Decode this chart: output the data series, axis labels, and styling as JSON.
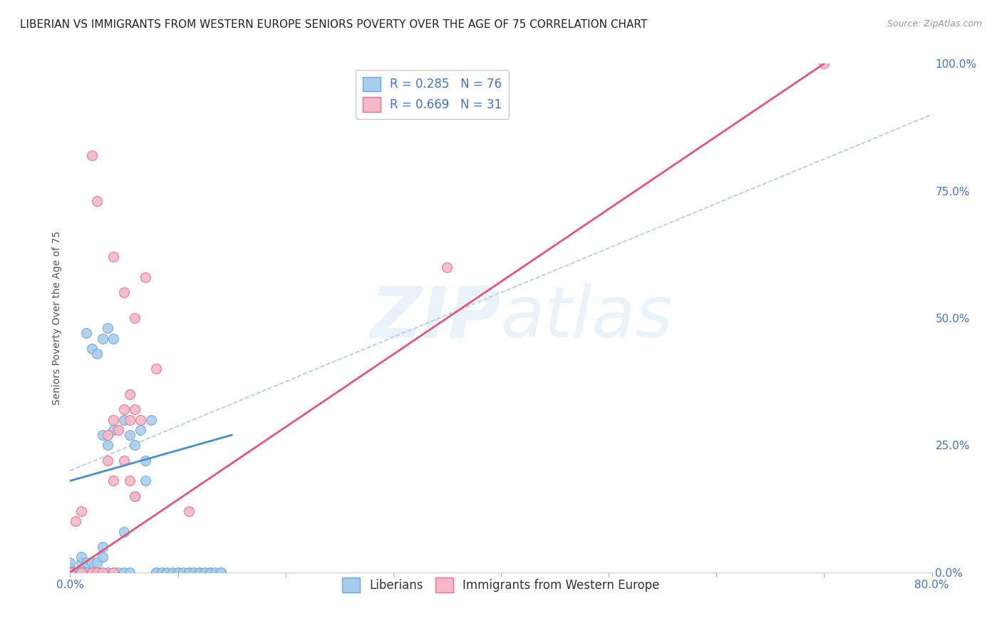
{
  "title": "LIBERIAN VS IMMIGRANTS FROM WESTERN EUROPE SENIORS POVERTY OVER THE AGE OF 75 CORRELATION CHART",
  "source": "Source: ZipAtlas.com",
  "ylabel": "Seniors Poverty Over the Age of 75",
  "xlim": [
    0.0,
    0.8
  ],
  "ylim": [
    0.0,
    1.0
  ],
  "xticks": [
    0.0,
    0.1,
    0.2,
    0.3,
    0.4,
    0.5,
    0.6,
    0.7,
    0.8
  ],
  "ytick_labels_right": [
    "0.0%",
    "25.0%",
    "50.0%",
    "75.0%",
    "100.0%"
  ],
  "yticks_right": [
    0.0,
    0.25,
    0.5,
    0.75,
    1.0
  ],
  "R_blue": 0.285,
  "N_blue": 76,
  "R_pink": 0.669,
  "N_pink": 31,
  "blue_color": "#a8ccee",
  "pink_color": "#f5b8c8",
  "blue_edge_color": "#6aaad4",
  "pink_edge_color": "#e8708a",
  "blue_line_color": "#4a8fc0",
  "pink_line_color": "#e05878",
  "diag_color": "#b0c8e8",
  "background_color": "#ffffff",
  "grid_color": "#e8e8e8",
  "title_fontsize": 11,
  "axis_label_fontsize": 10,
  "tick_fontsize": 11,
  "legend_fontsize": 12,
  "blue_scatter": [
    [
      0.0,
      0.0
    ],
    [
      0.0,
      0.0
    ],
    [
      0.0,
      0.0
    ],
    [
      0.0,
      0.0
    ],
    [
      0.0,
      0.0
    ],
    [
      0.0,
      0.0
    ],
    [
      0.0,
      0.0
    ],
    [
      0.0,
      0.0
    ],
    [
      0.0,
      0.01
    ],
    [
      0.0,
      0.02
    ],
    [
      0.005,
      0.0
    ],
    [
      0.005,
      0.0
    ],
    [
      0.005,
      0.0
    ],
    [
      0.005,
      0.0
    ],
    [
      0.008,
      0.0
    ],
    [
      0.01,
      0.0
    ],
    [
      0.01,
      0.0
    ],
    [
      0.01,
      0.0
    ],
    [
      0.01,
      0.02
    ],
    [
      0.01,
      0.03
    ],
    [
      0.015,
      0.0
    ],
    [
      0.015,
      0.0
    ],
    [
      0.015,
      0.02
    ],
    [
      0.02,
      0.0
    ],
    [
      0.02,
      0.0
    ],
    [
      0.02,
      0.0
    ],
    [
      0.02,
      0.02
    ],
    [
      0.025,
      0.0
    ],
    [
      0.025,
      0.02
    ],
    [
      0.03,
      0.0
    ],
    [
      0.03,
      0.03
    ],
    [
      0.03,
      0.05
    ],
    [
      0.03,
      0.27
    ],
    [
      0.035,
      0.0
    ],
    [
      0.035,
      0.25
    ],
    [
      0.04,
      0.0
    ],
    [
      0.04,
      0.0
    ],
    [
      0.04,
      0.28
    ],
    [
      0.045,
      0.0
    ],
    [
      0.05,
      0.0
    ],
    [
      0.05,
      0.08
    ],
    [
      0.05,
      0.3
    ],
    [
      0.055,
      0.0
    ],
    [
      0.055,
      0.27
    ],
    [
      0.06,
      0.15
    ],
    [
      0.06,
      0.25
    ],
    [
      0.065,
      0.28
    ],
    [
      0.07,
      0.18
    ],
    [
      0.07,
      0.22
    ],
    [
      0.075,
      0.3
    ],
    [
      0.08,
      0.0
    ],
    [
      0.08,
      0.0
    ],
    [
      0.085,
      0.0
    ],
    [
      0.09,
      0.0
    ],
    [
      0.09,
      0.0
    ],
    [
      0.095,
      0.0
    ],
    [
      0.1,
      0.0
    ],
    [
      0.1,
      0.0
    ],
    [
      0.105,
      0.0
    ],
    [
      0.11,
      0.0
    ],
    [
      0.11,
      0.0
    ],
    [
      0.115,
      0.0
    ],
    [
      0.12,
      0.0
    ],
    [
      0.12,
      0.0
    ],
    [
      0.125,
      0.0
    ],
    [
      0.13,
      0.0
    ],
    [
      0.13,
      0.0
    ],
    [
      0.135,
      0.0
    ],
    [
      0.14,
      0.0
    ],
    [
      0.14,
      0.0
    ],
    [
      0.015,
      0.47
    ],
    [
      0.02,
      0.44
    ],
    [
      0.025,
      0.43
    ],
    [
      0.03,
      0.46
    ],
    [
      0.035,
      0.48
    ],
    [
      0.04,
      0.46
    ]
  ],
  "pink_scatter": [
    [
      0.02,
      0.82
    ],
    [
      0.025,
      0.73
    ],
    [
      0.04,
      0.62
    ],
    [
      0.05,
      0.55
    ],
    [
      0.06,
      0.5
    ],
    [
      0.07,
      0.58
    ],
    [
      0.08,
      0.4
    ],
    [
      0.035,
      0.27
    ],
    [
      0.04,
      0.3
    ],
    [
      0.045,
      0.28
    ],
    [
      0.05,
      0.32
    ],
    [
      0.055,
      0.3
    ],
    [
      0.055,
      0.35
    ],
    [
      0.06,
      0.32
    ],
    [
      0.065,
      0.3
    ],
    [
      0.01,
      0.0
    ],
    [
      0.02,
      0.0
    ],
    [
      0.025,
      0.0
    ],
    [
      0.03,
      0.0
    ],
    [
      0.04,
      0.0
    ],
    [
      0.11,
      0.12
    ],
    [
      0.0,
      0.0
    ],
    [
      0.35,
      0.6
    ],
    [
      0.7,
      1.0
    ],
    [
      0.005,
      0.1
    ],
    [
      0.01,
      0.12
    ],
    [
      0.035,
      0.22
    ],
    [
      0.04,
      0.18
    ],
    [
      0.05,
      0.22
    ],
    [
      0.055,
      0.18
    ],
    [
      0.06,
      0.15
    ]
  ]
}
